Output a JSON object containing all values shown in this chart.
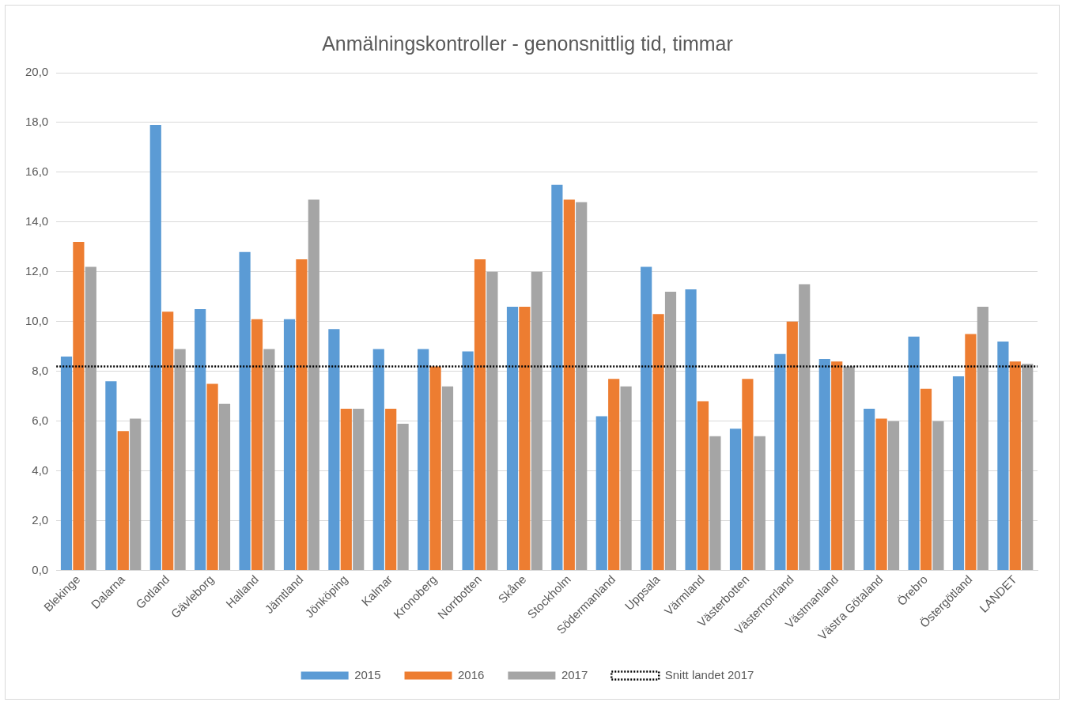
{
  "chart_data": {
    "type": "bar",
    "title": "Anmälningskontroller - genonsnittlig tid, timmar",
    "categories": [
      "Blekinge",
      "Dalarna",
      "Gotland",
      "Gävleborg",
      "Halland",
      "Jämtland",
      "Jönköping",
      "Kalmar",
      "Kronoberg",
      "Norrbotten",
      "Skåne",
      "Stockholm",
      "Södermanland",
      "Uppsala",
      "Värmland",
      "Västerbotten",
      "Västernorrland",
      "Västmanland",
      "Västra Götaland",
      "Örebro",
      "Östergötland",
      "LANDET"
    ],
    "series": [
      {
        "name": "2015",
        "color": "#5b9bd5",
        "values": [
          8.6,
          7.6,
          17.9,
          10.5,
          12.8,
          10.1,
          9.7,
          8.9,
          8.9,
          8.8,
          10.6,
          15.5,
          6.2,
          12.2,
          11.3,
          5.7,
          8.7,
          8.5,
          6.5,
          9.4,
          7.8,
          9.2
        ]
      },
      {
        "name": "2016",
        "color": "#ed7d31",
        "values": [
          13.2,
          5.6,
          10.4,
          7.5,
          10.1,
          12.5,
          6.5,
          6.5,
          8.2,
          12.5,
          10.6,
          14.9,
          7.7,
          10.3,
          6.8,
          7.7,
          10.0,
          8.4,
          6.1,
          7.3,
          9.5,
          8.4
        ]
      },
      {
        "name": "2017",
        "color": "#a5a5a5",
        "values": [
          12.2,
          6.1,
          8.9,
          6.7,
          8.9,
          14.9,
          6.5,
          5.9,
          7.4,
          12.0,
          12.0,
          14.8,
          7.4,
          11.2,
          5.4,
          5.4,
          11.5,
          8.2,
          6.0,
          6.0,
          10.6,
          8.3
        ]
      }
    ],
    "ylim": [
      0,
      20
    ],
    "yticks": [
      {
        "value": 0,
        "label": "0,0"
      },
      {
        "value": 2,
        "label": "2,0"
      },
      {
        "value": 4,
        "label": "4,0"
      },
      {
        "value": 6,
        "label": "6,0"
      },
      {
        "value": 8,
        "label": "8,0"
      },
      {
        "value": 10,
        "label": "10,0"
      },
      {
        "value": 12,
        "label": "12,0"
      },
      {
        "value": 14,
        "label": "14,0"
      },
      {
        "value": 16,
        "label": "16,0"
      },
      {
        "value": 18,
        "label": "18,0"
      },
      {
        "value": 20,
        "label": "20,0"
      }
    ],
    "ref_lines": [
      {
        "axis": "y",
        "value": 8.2,
        "label": "Snitt landet 2017",
        "color": "#000000",
        "line_style": "dotted"
      }
    ],
    "grid": "y",
    "legend": "bottom"
  }
}
